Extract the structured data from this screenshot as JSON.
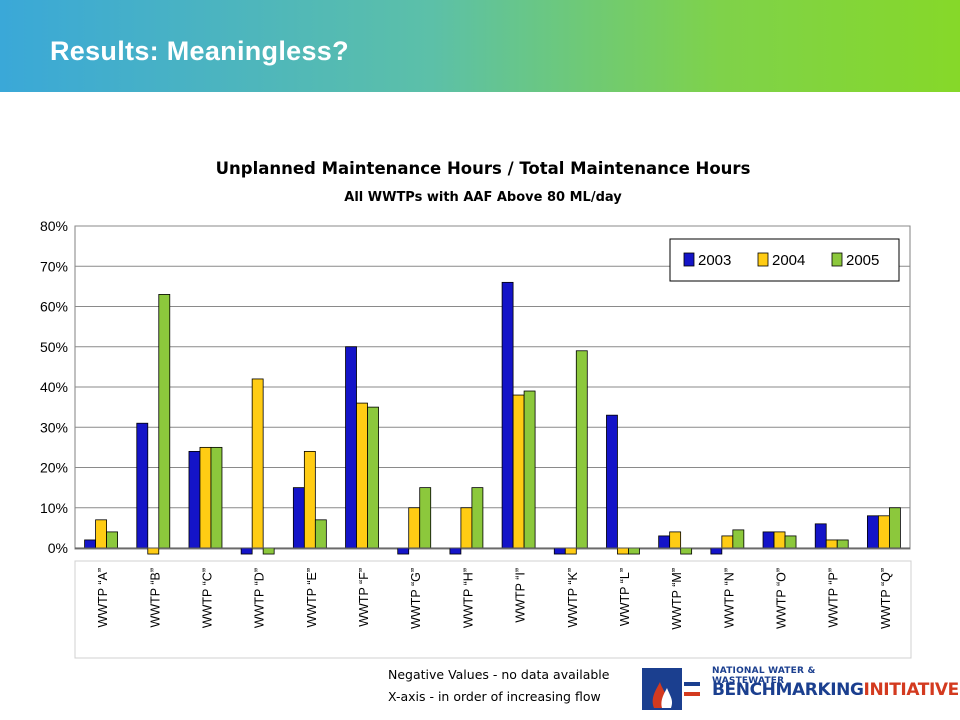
{
  "slide_title": "Results:  Meaningless?",
  "notes": [
    "Negative Values - no data available",
    "X-axis - in order of increasing flow"
  ],
  "logo": {
    "line1": "NATIONAL WATER & WASTEWATER",
    "line2a": "BENCHMARKING",
    "line2b": "INITIATIVE"
  },
  "colors": {
    "2003": "#1414c8",
    "2004": "#ffcc14",
    "2005": "#8cc83c"
  },
  "chart_data": {
    "type": "bar",
    "title": "Unplanned Maintenance Hours / Total Maintenance Hours",
    "subtitle": "All WWTPs with AAF Above 80 ML/day",
    "categories": [
      "WWTP “A”",
      "WWTP “B”",
      "WWTP “C”",
      "WWTP “D”",
      "WWTP “E”",
      "WWTP “F”",
      "WWTP “G”",
      "WWTP “H”",
      "WWTP “I”",
      "WWTP “K”",
      "WWTP “L”",
      "WWTP “M”",
      "WWTP “N”",
      "WWTP “O”",
      "WWTP “P”",
      "WWTP “Q”"
    ],
    "series": [
      {
        "name": "2003",
        "values": [
          2,
          31,
          24,
          -1.5,
          15,
          50,
          -1.5,
          -1.5,
          66,
          -1.5,
          33,
          3,
          -1.5,
          4,
          6,
          8
        ]
      },
      {
        "name": "2004",
        "values": [
          7,
          -1.5,
          25,
          42,
          24,
          36,
          10,
          10,
          38,
          -1.5,
          -1.5,
          4,
          3,
          4,
          2,
          8
        ]
      },
      {
        "name": "2005",
        "values": [
          4,
          63,
          25,
          -1.5,
          7,
          35,
          15,
          15,
          39,
          49,
          -1.5,
          -1.5,
          4.5,
          3,
          2,
          10
        ]
      }
    ],
    "ylim": [
      0,
      80
    ],
    "yticks": [
      "0%",
      "10%",
      "20%",
      "30%",
      "40%",
      "50%",
      "60%",
      "70%",
      "80%"
    ],
    "grid": true,
    "legend_position": "top-right"
  }
}
